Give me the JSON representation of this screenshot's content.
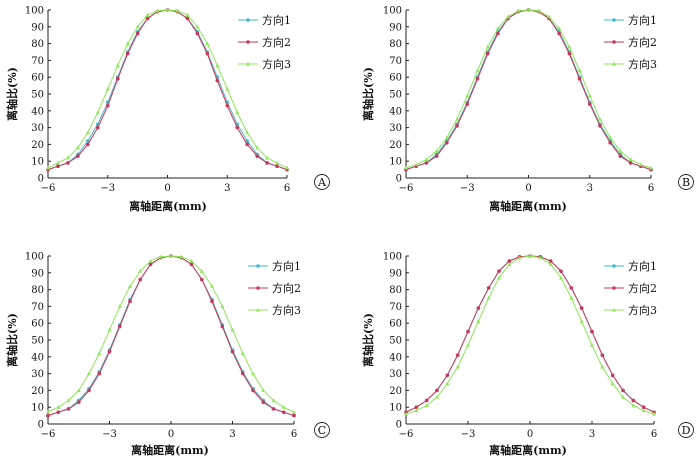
{
  "chart_data": [
    {
      "type": "line",
      "panel_label": "A",
      "xlabel": "离轴距离(mm)",
      "ylabel": "离轴比(%)",
      "xlim": [
        -6,
        6
      ],
      "ylim": [
        0,
        100
      ],
      "xticks": [
        -6,
        -3,
        0,
        3,
        6
      ],
      "xtick_labels": [
        "−6",
        "−3",
        "0",
        "3",
        "6"
      ],
      "yticks": [
        0,
        10,
        20,
        30,
        40,
        50,
        60,
        70,
        80,
        90,
        100
      ],
      "legend_position": "top-right",
      "grid": false,
      "series": [
        {
          "name": "方向1",
          "color": "#3fb8c8",
          "marker": "circle",
          "x": [
            -6,
            -5.5,
            -5,
            -4.5,
            -4,
            -3.5,
            -3,
            -2.5,
            -2,
            -1.5,
            -1,
            -0.5,
            0,
            0.5,
            1,
            1.5,
            2,
            2.5,
            3,
            3.5,
            4,
            4.5,
            5,
            5.5,
            6
          ],
          "y": [
            5,
            7,
            9,
            14,
            22,
            32,
            45,
            60,
            75,
            87,
            95,
            99,
            100,
            99,
            95,
            87,
            75,
            60,
            45,
            32,
            22,
            14,
            9,
            7,
            5
          ]
        },
        {
          "name": "方向2",
          "color": "#c8385a",
          "marker": "circle",
          "x": [
            -6,
            -5.5,
            -5,
            -4.5,
            -4,
            -3.5,
            -3,
            -2.5,
            -2,
            -1.5,
            -1,
            -0.5,
            0,
            0.5,
            1,
            1.5,
            2,
            2.5,
            3,
            3.5,
            4,
            4.5,
            5,
            5.5,
            6
          ],
          "y": [
            5,
            7,
            9,
            13,
            20,
            30,
            43,
            59,
            74,
            86,
            95,
            99,
            100,
            99,
            95,
            86,
            74,
            58,
            43,
            30,
            20,
            13,
            9,
            7,
            5
          ]
        },
        {
          "name": "方向3",
          "color": "#8ee65a",
          "marker": "triangle",
          "x": [
            -6,
            -5.5,
            -5,
            -4.5,
            -4,
            -3.5,
            -3,
            -2.5,
            -2,
            -1.5,
            -1,
            -0.5,
            0,
            0.5,
            1,
            1.5,
            2,
            2.5,
            3,
            3.5,
            4,
            4.5,
            5,
            5.5,
            6
          ],
          "y": [
            6,
            9,
            12,
            18,
            27,
            39,
            53,
            67,
            80,
            90,
            97,
            99.5,
            100,
            99.5,
            97,
            90,
            80,
            67,
            53,
            39,
            27,
            18,
            12,
            9,
            6
          ]
        }
      ]
    },
    {
      "type": "line",
      "panel_label": "B",
      "xlabel": "离轴距离(mm)",
      "ylabel": "离轴比(%)",
      "xlim": [
        -6,
        6
      ],
      "ylim": [
        0,
        100
      ],
      "xticks": [
        -6,
        -3,
        0,
        3,
        6
      ],
      "xtick_labels": [
        "−6",
        "−3",
        "0",
        "3",
        "6"
      ],
      "yticks": [
        0,
        10,
        20,
        30,
        40,
        50,
        60,
        70,
        80,
        90,
        100
      ],
      "legend_position": "top-right",
      "grid": false,
      "series": [
        {
          "name": "方向1",
          "color": "#3fb8c8",
          "marker": "circle",
          "x": [
            -6,
            -5.5,
            -5,
            -4.5,
            -4,
            -3.5,
            -3,
            -2.5,
            -2,
            -1.5,
            -1,
            -0.5,
            0,
            0.5,
            1,
            1.5,
            2,
            2.5,
            3,
            3.5,
            4,
            4.5,
            5,
            5.5,
            6
          ],
          "y": [
            5,
            7,
            9,
            14,
            22,
            32,
            45,
            60,
            75,
            87,
            95,
            99,
            100,
            99,
            95,
            87,
            75,
            60,
            45,
            32,
            22,
            14,
            9,
            7,
            5
          ]
        },
        {
          "name": "方向2",
          "color": "#c8385a",
          "marker": "circle",
          "x": [
            -6,
            -5.5,
            -5,
            -4.5,
            -4,
            -3.5,
            -3,
            -2.5,
            -2,
            -1.5,
            -1,
            -0.5,
            0,
            0.5,
            1,
            1.5,
            2,
            2.5,
            3,
            3.5,
            4,
            4.5,
            5,
            5.5,
            6
          ],
          "y": [
            5,
            7,
            9,
            13,
            21,
            31,
            44,
            59,
            74,
            86,
            95,
            99,
            100,
            99,
            95,
            86,
            74,
            59,
            44,
            31,
            21,
            13,
            9,
            7,
            5
          ]
        },
        {
          "name": "方向3",
          "color": "#8ee65a",
          "marker": "triangle",
          "x": [
            -6,
            -5.5,
            -5,
            -4.5,
            -4,
            -3.5,
            -3,
            -2.5,
            -2,
            -1.5,
            -1,
            -0.5,
            0,
            0.5,
            1,
            1.5,
            2,
            2.5,
            3,
            3.5,
            4,
            4.5,
            5,
            5.5,
            6
          ],
          "y": [
            6,
            8,
            11,
            16,
            24,
            35,
            49,
            64,
            78,
            89,
            96,
            99.5,
            100,
            99.5,
            96,
            89,
            78,
            64,
            49,
            35,
            24,
            16,
            11,
            8,
            6
          ]
        }
      ]
    },
    {
      "type": "line",
      "panel_label": "C",
      "xlabel": "离轴距离(mm)",
      "ylabel": "离轴比(%)",
      "xlim": [
        -6,
        6
      ],
      "ylim": [
        0,
        100
      ],
      "xticks": [
        -6,
        -3,
        0,
        3,
        6
      ],
      "xtick_labels": [
        "−6",
        "−3",
        "0",
        "3",
        "6"
      ],
      "yticks": [
        0,
        10,
        20,
        30,
        40,
        50,
        60,
        70,
        80,
        90,
        100
      ],
      "legend_position": "top-right",
      "grid": false,
      "series": [
        {
          "name": "方向1",
          "color": "#3fb8c8",
          "marker": "circle",
          "x": [
            -6,
            -5.5,
            -5,
            -4.5,
            -4,
            -3.5,
            -3,
            -2.5,
            -2,
            -1.5,
            -1,
            -0.5,
            0,
            0.5,
            1,
            1.5,
            2,
            2.5,
            3,
            3.5,
            4,
            4.5,
            5,
            5.5,
            6
          ],
          "y": [
            5,
            7,
            9,
            14,
            21,
            31,
            44,
            59,
            74,
            86,
            95,
            99,
            100,
            99,
            95,
            86,
            74,
            59,
            44,
            31,
            21,
            14,
            9,
            7,
            5
          ]
        },
        {
          "name": "方向2",
          "color": "#c8385a",
          "marker": "circle",
          "x": [
            -6,
            -5.5,
            -5,
            -4.5,
            -4,
            -3.5,
            -3,
            -2.5,
            -2,
            -1.5,
            -1,
            -0.5,
            0,
            0.5,
            1,
            1.5,
            2,
            2.5,
            3,
            3.5,
            4,
            4.5,
            5,
            5.5,
            6
          ],
          "y": [
            5,
            7,
            9,
            13,
            20,
            30,
            43,
            58,
            73,
            86,
            95,
            99,
            100,
            99,
            95,
            86,
            73,
            58,
            43,
            30,
            20,
            13,
            9,
            7,
            5
          ]
        },
        {
          "name": "方向3",
          "color": "#8ee65a",
          "marker": "triangle",
          "x": [
            -6,
            -5.5,
            -5,
            -4.5,
            -4,
            -3.5,
            -3,
            -2.5,
            -2,
            -1.5,
            -1,
            -0.5,
            0,
            0.5,
            1,
            1.5,
            2,
            2.5,
            3,
            3.5,
            4,
            4.5,
            5,
            5.5,
            6
          ],
          "y": [
            7,
            10,
            14,
            20,
            30,
            42,
            56,
            70,
            82,
            91,
            97,
            99.5,
            100,
            99.5,
            97,
            91,
            82,
            70,
            56,
            42,
            30,
            20,
            14,
            10,
            7
          ]
        }
      ]
    },
    {
      "type": "line",
      "panel_label": "D",
      "xlabel": "离轴距离(mm)",
      "ylabel": "离轴比(%)",
      "xlim": [
        -6,
        6
      ],
      "ylim": [
        0,
        100
      ],
      "xticks": [
        -6,
        -3,
        0,
        3,
        6
      ],
      "xtick_labels": [
        "−6",
        "−3",
        "0",
        "3",
        "6"
      ],
      "yticks": [
        0,
        10,
        20,
        30,
        40,
        50,
        60,
        70,
        80,
        90,
        100
      ],
      "legend_position": "top-right",
      "grid": false,
      "series": [
        {
          "name": "方向1",
          "color": "#3fb8c8",
          "marker": "circle",
          "x": [
            -6,
            -5.5,
            -5,
            -4.5,
            -4,
            -3.5,
            -3,
            -2.5,
            -2,
            -1.5,
            -1,
            -0.5,
            0,
            0.5,
            1,
            1.5,
            2,
            2.5,
            3,
            3.5,
            4,
            4.5,
            5,
            5.5,
            6
          ],
          "y": [
            7,
            10,
            14,
            20,
            29,
            41,
            55,
            69,
            81,
            91,
            97,
            99.5,
            100,
            99.5,
            97,
            91,
            81,
            69,
            55,
            41,
            29,
            20,
            14,
            10,
            7
          ]
        },
        {
          "name": "方向2",
          "color": "#c8385a",
          "marker": "circle",
          "x": [
            -6,
            -5.5,
            -5,
            -4.5,
            -4,
            -3.5,
            -3,
            -2.5,
            -2,
            -1.5,
            -1,
            -0.5,
            0,
            0.5,
            1,
            1.5,
            2,
            2.5,
            3,
            3.5,
            4,
            4.5,
            5,
            5.5,
            6
          ],
          "y": [
            7,
            10,
            14,
            20,
            29,
            41,
            55,
            69,
            81,
            91,
            97,
            99.5,
            100,
            99.5,
            97,
            91,
            81,
            69,
            55,
            41,
            29,
            20,
            14,
            10,
            7
          ]
        },
        {
          "name": "方向3",
          "color": "#8ee65a",
          "marker": "triangle",
          "x": [
            -6,
            -5.5,
            -5,
            -4.5,
            -4,
            -3.5,
            -3,
            -2.5,
            -2,
            -1.5,
            -1,
            -0.5,
            0,
            0.5,
            1,
            1.5,
            2,
            2.5,
            3,
            3.5,
            4,
            4.5,
            5,
            5.5,
            6
          ],
          "y": [
            6,
            8,
            11,
            16,
            24,
            34,
            47,
            61,
            75,
            87,
            95,
            99,
            100,
            99,
            95,
            87,
            75,
            61,
            47,
            34,
            24,
            16,
            11,
            8,
            6
          ]
        }
      ]
    }
  ]
}
